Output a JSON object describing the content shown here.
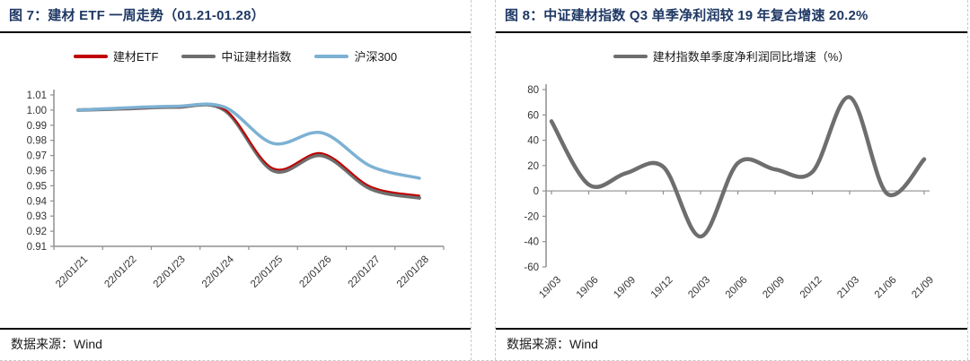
{
  "colors": {
    "title": "#1f3864",
    "rule": "#000000",
    "axis": "#8f8f8f",
    "dashed_border": "#c9c9c9"
  },
  "chart_data": [
    {
      "type": "line",
      "title": "图 7：建材 ETF 一周走势（01.21-01.28）",
      "source": "数据来源：Wind",
      "legend_position": "top",
      "grid": false,
      "smoothed": true,
      "x_mode": "between",
      "xlabel": "",
      "ylabel": "",
      "categories": [
        "22/01/21",
        "22/01/22",
        "22/01/23",
        "22/01/24",
        "22/01/25",
        "22/01/26",
        "22/01/27",
        "22/01/28"
      ],
      "series": [
        {
          "name": "建材ETF",
          "color": "#c00000",
          "width": 2,
          "values": [
            1.0,
            1.001,
            1.002,
            1.0005,
            0.9615,
            0.9715,
            0.9495,
            0.9435
          ]
        },
        {
          "name": "中证建材指数",
          "color": "#6e6e6e",
          "width": 4,
          "values": [
            1.0,
            1.001,
            1.002,
            1.0,
            0.96,
            0.97,
            0.948,
            0.942
          ]
        },
        {
          "name": "沪深300",
          "color": "#7cb1d3",
          "width": 3.5,
          "values": [
            1.0,
            1.0015,
            1.0025,
            1.002,
            0.978,
            0.985,
            0.963,
            0.955
          ]
        }
      ],
      "ylim": [
        0.91,
        1.01
      ],
      "yticks": [
        "1.01",
        "1.00",
        "0.99",
        "0.98",
        "0.97",
        "0.96",
        "0.95",
        "0.94",
        "0.93",
        "0.92",
        "0.91"
      ]
    },
    {
      "type": "line",
      "title": "图 8：中证建材指数 Q3 单季净利润较 19 年复合增速 20.2%",
      "source": "数据来源：Wind",
      "legend_position": "top",
      "grid": false,
      "smoothed": true,
      "x_mode": "on_ticks",
      "zero_line": true,
      "xlabel": "",
      "ylabel": "",
      "categories": [
        "19/03",
        "19/06",
        "19/09",
        "19/12",
        "20/03",
        "20/06",
        "20/09",
        "20/12",
        "21/03",
        "21/06",
        "21/09"
      ],
      "series": [
        {
          "name": "建材指数单季度净利润同比增速（%）",
          "color": "#6e6e6e",
          "width": 4.5,
          "values": [
            55,
            5,
            14,
            19,
            -36,
            22,
            17,
            15,
            74,
            -2,
            25
          ]
        }
      ],
      "ylim": [
        -60,
        80
      ],
      "yticks": [
        "80",
        "60",
        "40",
        "20",
        "0",
        "-20",
        "-40",
        "-60"
      ]
    }
  ]
}
